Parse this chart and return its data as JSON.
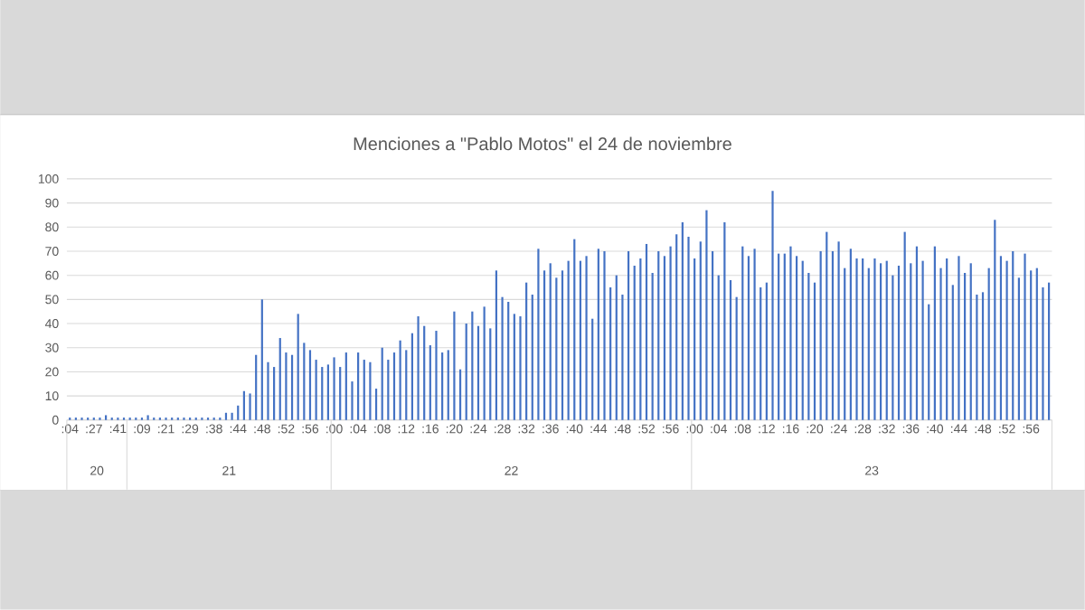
{
  "chart_data": {
    "type": "bar",
    "title": "Menciones a \"Pablo Motos\" el 24 de noviembre",
    "color": "#4472c4",
    "grid": "y",
    "ylim": [
      0,
      100
    ],
    "yticks": [
      0,
      10,
      20,
      30,
      40,
      50,
      60,
      70,
      80,
      90,
      100
    ],
    "annotations": [
      "20",
      "21",
      "22",
      "23"
    ],
    "categories": [
      ":04",
      null,
      null,
      null,
      ":27",
      null,
      null,
      null,
      ":41",
      null,
      null,
      null,
      ":09",
      null,
      null,
      null,
      ":21",
      null,
      null,
      null,
      ":29",
      null,
      null,
      null,
      ":38",
      null,
      null,
      null,
      ":44",
      null,
      null,
      null,
      ":48",
      null,
      null,
      null,
      ":52",
      null,
      null,
      null,
      ":56",
      null,
      null,
      null,
      ":00",
      null,
      null,
      null,
      ":04",
      null,
      null,
      null,
      ":08",
      null,
      null,
      null,
      ":12",
      null,
      null,
      null,
      ":16",
      null,
      null,
      null,
      ":20",
      null,
      null,
      null,
      ":24",
      null,
      null,
      null,
      ":28",
      null,
      null,
      null,
      ":32",
      null,
      null,
      null,
      ":36",
      null,
      null,
      null,
      ":40",
      null,
      null,
      null,
      ":44",
      null,
      null,
      null,
      ":48",
      null,
      null,
      null,
      ":52",
      null,
      null,
      null,
      ":56",
      null,
      null,
      null,
      ":00",
      null,
      null,
      null,
      ":04",
      null,
      null,
      null,
      ":08",
      null,
      null,
      null,
      ":12",
      null,
      null,
      null,
      ":16",
      null,
      null,
      null,
      ":20",
      null,
      null,
      null,
      ":24",
      null,
      null,
      null,
      ":28",
      null,
      null,
      null,
      ":32",
      null,
      null,
      null,
      ":36",
      null,
      null,
      null,
      ":40",
      null,
      null,
      null,
      ":44",
      null,
      null,
      null,
      ":48",
      null,
      null,
      null,
      ":52",
      null,
      null,
      null,
      ":56",
      null,
      null,
      null
    ],
    "values": [
      1,
      1,
      1,
      1,
      1,
      1,
      2,
      1,
      1,
      1,
      1,
      1,
      1,
      2,
      1,
      1,
      1,
      1,
      1,
      1,
      1,
      1,
      1,
      1,
      1,
      1,
      3,
      3,
      6,
      12,
      11,
      27,
      50,
      24,
      22,
      34,
      28,
      27,
      44,
      32,
      29,
      25,
      22,
      23,
      26,
      22,
      28,
      16,
      28,
      25,
      24,
      13,
      30,
      25,
      28,
      33,
      29,
      36,
      43,
      39,
      31,
      37,
      28,
      29,
      45,
      21,
      40,
      45,
      39,
      47,
      38,
      62,
      51,
      49,
      44,
      43,
      57,
      52,
      71,
      62,
      65,
      59,
      62,
      66,
      75,
      66,
      68,
      42,
      71,
      70,
      55,
      60,
      52,
      70,
      64,
      67,
      73,
      61,
      70,
      68,
      72,
      77,
      82,
      76,
      67,
      74,
      87,
      70,
      60,
      82,
      58,
      51,
      72,
      68,
      71,
      55,
      57,
      95,
      69,
      69,
      72,
      68,
      66,
      61,
      57,
      70,
      78,
      70,
      74,
      63,
      71,
      67,
      67,
      63,
      67,
      65,
      66,
      60,
      64,
      78,
      65,
      72,
      66,
      48,
      72,
      63,
      67,
      56,
      68,
      61,
      65,
      52,
      53,
      63,
      83,
      68,
      66,
      70,
      59,
      69,
      62,
      63,
      55,
      57
    ]
  }
}
